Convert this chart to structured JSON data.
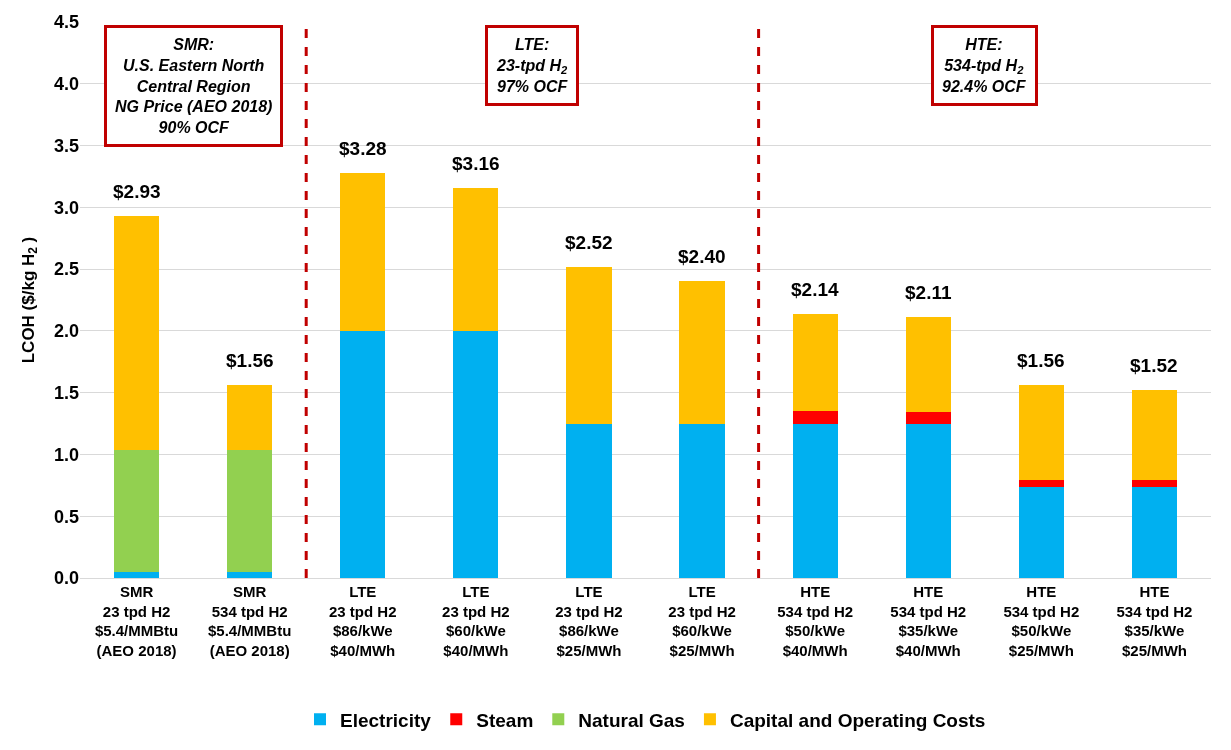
{
  "chart_data": {
    "type": "bar",
    "stacked": true,
    "ylabel": "LCOH ($/kg H$_{2}$ )",
    "categories": [
      "SMR\n23 tpd H2\n$5.4/MMBtu\n(AEO 2018)",
      "SMR\n534 tpd H2\n$5.4/MMBtu\n(AEO 2018)",
      "LTE\n23 tpd H2\n$86/kWe\n$40/MWh",
      "LTE\n23 tpd H2\n$60/kWe\n$40/MWh",
      "LTE\n23 tpd H2\n$86/kWe\n$25/MWh",
      "LTE\n23 tpd H2\n$60/kWe\n$25/MWh",
      "HTE\n534 tpd H2\n$50/kWe\n$40/MWh",
      "HTE\n534 tpd H2\n$35/kWe\n$40/MWh",
      "HTE\n534 tpd H2\n$50/kWe\n$25/MWh",
      "HTE\n534 tpd H2\n$35/kWe\n$25/MWh"
    ],
    "series": [
      {
        "name": "Electricity",
        "color": "#00b0f0",
        "values": [
          0.05,
          0.05,
          2.0,
          2.0,
          1.25,
          1.25,
          1.25,
          1.25,
          0.74,
          0.74
        ]
      },
      {
        "name": "Steam",
        "color": "#ff0000",
        "values": [
          null,
          null,
          null,
          null,
          null,
          null,
          0.1,
          0.09,
          0.05,
          0.05
        ]
      },
      {
        "name": "Natural Gas",
        "color": "#92d050",
        "values": [
          0.99,
          0.99,
          null,
          null,
          null,
          null,
          null,
          null,
          null,
          null
        ]
      },
      {
        "name": "Capital and Operating Costs",
        "color": "#ffc000",
        "values": [
          1.89,
          0.52,
          1.28,
          1.16,
          1.27,
          1.15,
          0.79,
          0.77,
          0.77,
          0.73
        ]
      }
    ],
    "totals": [
      "$2.93",
      "$1.56",
      "$3.28",
      "$3.16",
      "$2.52",
      "$2.40",
      "$2.14",
      "$2.11",
      "$1.56",
      "$1.52"
    ],
    "ylim": [
      0,
      4.5
    ],
    "yticks": [
      {
        "value": 0,
        "label": "0.0"
      },
      0.5,
      {
        "value": 1,
        "label": "1.0"
      },
      1.5,
      {
        "value": 2,
        "label": "2.0"
      },
      2.5,
      {
        "value": 3,
        "label": "3.0"
      },
      3.5,
      {
        "value": 4,
        "label": "4.0"
      },
      4.5
    ],
    "grid": "y",
    "legend": "bottom",
    "annotations": [
      "SMR:\nU.S. Eastern North\nCentral Region\nNG Price (AEO 2018)\n90% OCF",
      "LTE:\n23-tpd H$_{2}$\n97% OCF",
      "HTE:\n534-tpd H$_{2}$\n92.4% OCF"
    ]
  }
}
